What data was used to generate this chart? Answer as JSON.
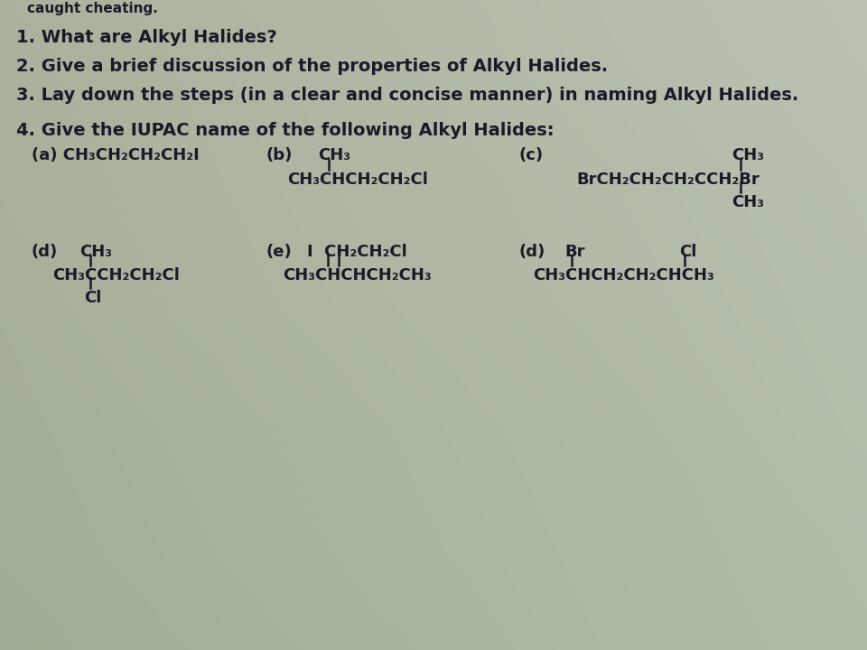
{
  "bg_color": "#b0b8a8",
  "dark": "#1a1a28",
  "header1": "caught cheating.",
  "q1": "1. What are Alkyl Halides?",
  "q2": "2. Give a brief discussion of the properties of Alkyl Halides.",
  "q3": "3. Lay down the steps (in a clear and concise manner) in naming Alkyl Halides.",
  "q4_head": "4. Give the IUPAC name of the following Alkyl Halides:",
  "q4a": "(a) CH₃CH₂CH₂CH₂I",
  "q4b_lbl": "(b)",
  "q4b_top": "CH₃",
  "q4b_main": "CH₃CHCH₂CH₂Cl",
  "q4c_lbl": "(c)",
  "q4c_top": "CH₃",
  "q4c_main": "BrCH₂CH₂CH₂CCH₂Br",
  "q4c_bot": "CH₃",
  "row2_d1_lbl": "(d)",
  "row2_d1_top": "CH₃",
  "row2_d1_main": "CH₃CCH₂CH₂Cl",
  "row2_d1_bot": "Cl",
  "row2_e_lbl": "(e)",
  "row2_e_top": "I  CH₂CH₂Cl",
  "row2_e_main": "CH₃CHCHCH₂CH₃",
  "row2_d2_lbl": "(d)",
  "row2_d2_br": "Br",
  "row2_d2_cl": "Cl",
  "row2_d2_main": "CH₃CHCH₂CH₂CHCH₃",
  "font_size_header": 11,
  "font_size_main": 14,
  "font_size_chem": 13
}
